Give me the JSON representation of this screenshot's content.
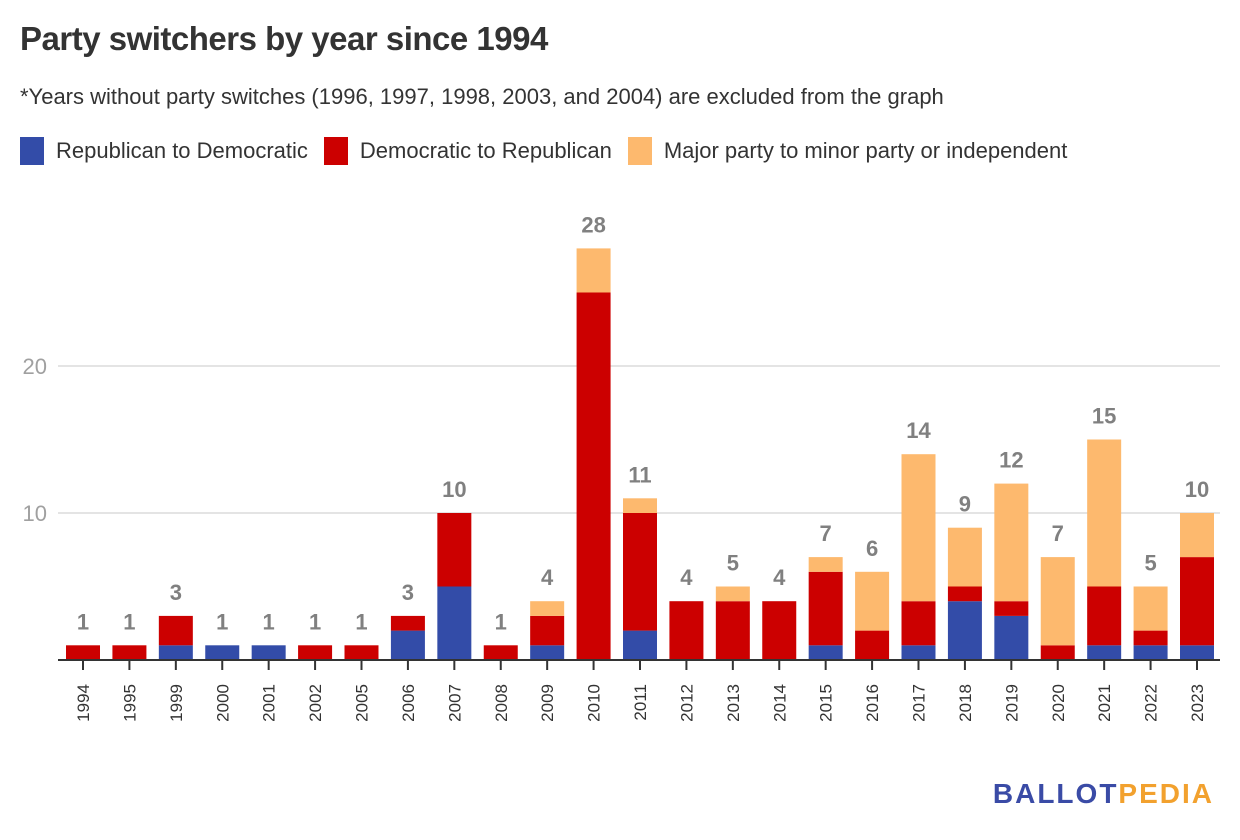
{
  "chart_data": {
    "type": "bar",
    "stacked": true,
    "title": "Party switchers by year since 1994",
    "subtitle": "*Years without party switches (1996, 1997, 1998, 2003, and 2004) are excluded from the graph",
    "xlabel": "",
    "ylabel": "",
    "ylim": [
      0,
      28
    ],
    "yticks": [
      10,
      20
    ],
    "grid": true,
    "legend_position": "top-left",
    "categories": [
      "1994",
      "1995",
      "1999",
      "2000",
      "2001",
      "2002",
      "2005",
      "2006",
      "2007",
      "2008",
      "2009",
      "2010",
      "2011",
      "2012",
      "2013",
      "2014",
      "2015",
      "2016",
      "2017",
      "2018",
      "2019",
      "2020",
      "2021",
      "2022",
      "2023"
    ],
    "series": [
      {
        "name": "Republican to Democratic",
        "color": "#334ca8",
        "values": [
          0,
          0,
          1,
          1,
          1,
          0,
          0,
          2,
          5,
          0,
          1,
          0,
          2,
          0,
          0,
          0,
          1,
          0,
          1,
          4,
          3,
          0,
          1,
          1,
          1
        ]
      },
      {
        "name": "Democratic to Republican",
        "color": "#cc0000",
        "values": [
          1,
          1,
          2,
          0,
          0,
          1,
          1,
          1,
          5,
          1,
          2,
          25,
          8,
          4,
          4,
          4,
          5,
          2,
          3,
          1,
          1,
          1,
          4,
          1,
          6
        ]
      },
      {
        "name": "Major party to minor party or independent",
        "color": "#fdb96e",
        "values": [
          0,
          0,
          0,
          0,
          0,
          0,
          0,
          0,
          0,
          0,
          1,
          3,
          1,
          0,
          1,
          0,
          1,
          4,
          10,
          4,
          8,
          6,
          10,
          3,
          3
        ]
      }
    ],
    "totals": [
      1,
      1,
      3,
      1,
      1,
      1,
      1,
      3,
      10,
      1,
      4,
      28,
      11,
      4,
      5,
      4,
      7,
      6,
      14,
      9,
      12,
      7,
      15,
      5,
      10
    ]
  },
  "branding": {
    "logo_part1": "BALLOT",
    "logo_part2": "PEDIA"
  }
}
